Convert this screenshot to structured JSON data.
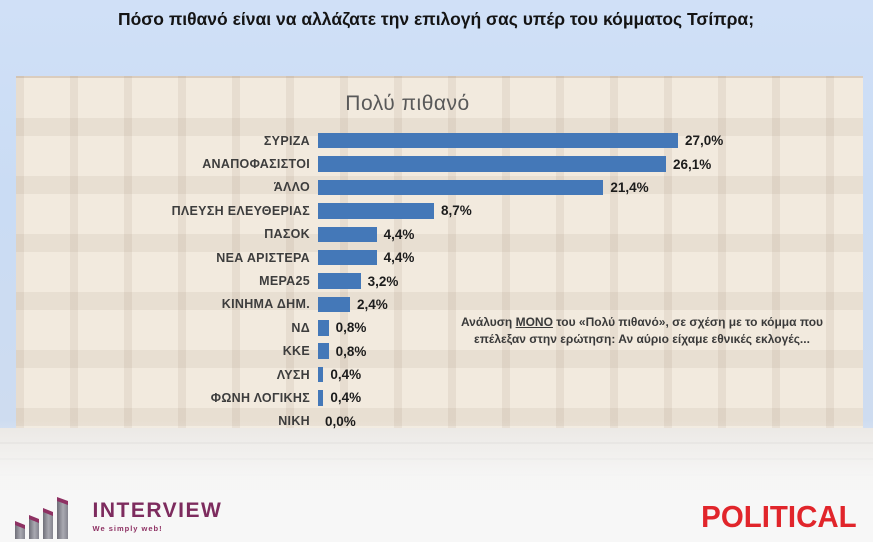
{
  "title": "Πόσο πιθανό είναι να αλλάζατε την επιλογή σας υπέρ του κόμματος Τσίπρα;",
  "chart_data": {
    "type": "bar",
    "orientation": "horizontal",
    "title": "Πολύ πιθανό",
    "categories": [
      "ΣΥΡΙΖΑ",
      "ΑΝΑΠΟΦΑΣΙΣΤΟΙ",
      "ΆΛΛΟ",
      "ΠΛΕΥΣΗ ΕΛΕΥΘΕΡΙΑΣ",
      "ΠΑΣΟΚ",
      "ΝΕΑ ΑΡΙΣΤΕΡΑ",
      "ΜΕΡΑ25",
      "ΚΙΝΗΜΑ ΔΗΜ.",
      "ΝΔ",
      "ΚΚΕ",
      "ΛΥΣΗ",
      "ΦΩΝΗ ΛΟΓΙΚΗΣ",
      "ΝΙΚΗ"
    ],
    "values": [
      27.0,
      26.1,
      21.4,
      8.7,
      4.4,
      4.4,
      3.2,
      2.4,
      0.8,
      0.8,
      0.4,
      0.4,
      0.0
    ],
    "value_labels": [
      "27,0%",
      "26,1%",
      "21,4%",
      "8,7%",
      "4,4%",
      "4,4%",
      "3,2%",
      "2,4%",
      "0,8%",
      "0,8%",
      "0,4%",
      "0,4%",
      "0,0%"
    ],
    "xlim": [
      0,
      28
    ],
    "grid": false,
    "legend": false,
    "bar_color": "#4478b8",
    "value_label_position": "end-of-bar"
  },
  "annotation": {
    "part1": "Ανάλυση ",
    "underlined": "ΜΟΝΟ",
    "part2": " του «Πολύ πιθανό», σε σχέση με το κόμμα που επέλεξαν στην ερώτηση: Αν αύριο είχαμε εθνικές εκλογές..."
  },
  "footer": {
    "interview": {
      "name": "INTERVIEW",
      "tagline": "We simply web!",
      "color": "#7d2b5e",
      "accent": "#8e3163"
    },
    "political": {
      "name": "POLITICAL",
      "color": "#e1252b"
    }
  }
}
